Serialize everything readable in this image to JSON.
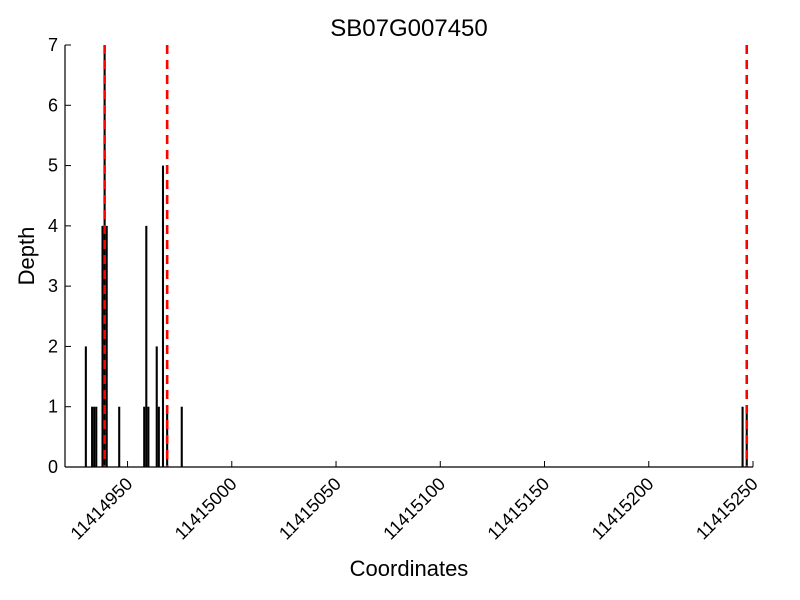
{
  "chart_data": {
    "type": "bar",
    "title": "SB07G007450",
    "xlabel": "Coordinates",
    "ylabel": "Depth",
    "xlim": [
      11414920,
      11415250
    ],
    "ylim": [
      0,
      7
    ],
    "xticks": [
      11414950,
      11415000,
      11415050,
      11415100,
      11415150,
      11415200,
      11415250
    ],
    "xtick_labels": [
      "11414950",
      "11415000",
      "11415050",
      "11415100",
      "11415150",
      "11415200",
      "11415250"
    ],
    "yticks": [
      0,
      1,
      2,
      3,
      4,
      5,
      6,
      7
    ],
    "ytick_labels": [
      "0",
      "1",
      "2",
      "3",
      "4",
      "5",
      "6",
      "7"
    ],
    "grid": false,
    "bar_color": "#000000",
    "bar_width": 1,
    "bars": [
      {
        "x": 11414930,
        "y": 2
      },
      {
        "x": 11414933,
        "y": 1
      },
      {
        "x": 11414934,
        "y": 1
      },
      {
        "x": 11414935,
        "y": 1
      },
      {
        "x": 11414938,
        "y": 4
      },
      {
        "x": 11414939,
        "y": 7
      },
      {
        "x": 11414940,
        "y": 4
      },
      {
        "x": 11414946,
        "y": 1
      },
      {
        "x": 11414958,
        "y": 1
      },
      {
        "x": 11414959,
        "y": 4
      },
      {
        "x": 11414960,
        "y": 1
      },
      {
        "x": 11414964,
        "y": 2
      },
      {
        "x": 11414965,
        "y": 1
      },
      {
        "x": 11414967,
        "y": 5
      },
      {
        "x": 11414969,
        "y": 1
      },
      {
        "x": 11414976,
        "y": 1
      },
      {
        "x": 11415245,
        "y": 1
      },
      {
        "x": 11415247,
        "y": 1
      }
    ],
    "vlines": {
      "color": "#ff0000",
      "style": "dashed",
      "x": [
        11414939,
        11414969,
        11415247
      ]
    }
  }
}
